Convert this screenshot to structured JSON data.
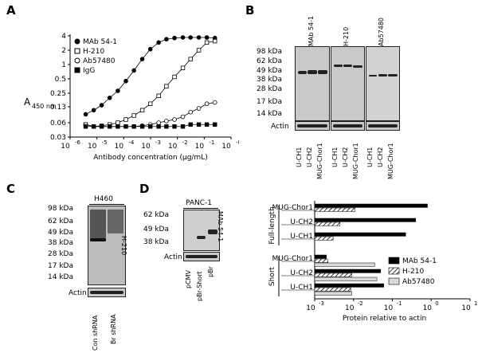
{
  "panels": {
    "a": {
      "letter": "A"
    },
    "b": {
      "letter": "B"
    },
    "c": {
      "letter": "C"
    },
    "d": {
      "letter": "D"
    }
  },
  "panel_b": {
    "columns": [
      "MAb 54-1",
      "H-210",
      "Ab57480"
    ],
    "markers": [
      "98 kDa",
      "62 kDa",
      "49 kDa",
      "38 kDa",
      "28 kDa",
      "17 kDa",
      "14 kDa"
    ],
    "actin": "Actin",
    "lanes": [
      "U-CH1",
      "U-CH2",
      "MUG-Chor1",
      "U-CH1",
      "U-CH2",
      "MUG-Chor1",
      "U-CH1",
      "U-CH2",
      "MUG-Chor1"
    ]
  },
  "panel_c": {
    "cell_line": "H460",
    "antibody": "H-210",
    "markers": [
      "98 kDa",
      "62 kDa",
      "49 kDa",
      "38 kDa",
      "28 kDa",
      "17 kDa",
      "14 kDa"
    ],
    "actin": "Actin",
    "lanes": [
      "Con shRNA",
      "Br shRNA"
    ]
  },
  "panel_d": {
    "cell_line": "PANC-1",
    "antibody": "MAb 54-1",
    "markers": [
      "62 kDa",
      "49 kDa",
      "38 kDa"
    ],
    "actin": "Actin",
    "lanes": [
      "pCMV",
      "pBr-Short",
      "pBr"
    ]
  },
  "chart_data": [
    {
      "type": "line",
      "xlabel": "Antibody concentration (μg/mL)",
      "ylabel": "A",
      "ylabel_sub": "450 nm",
      "x_scale": "log",
      "y_scale": "log",
      "xlim": [
        1e-06,
        1
      ],
      "ylim": [
        0.03,
        4
      ],
      "x_ticks": [
        "10",
        "10",
        "10",
        "10",
        "10",
        "10",
        "10"
      ],
      "x_tick_exp": [
        "-6",
        "-5",
        "-4",
        "-3",
        "-2",
        "-1",
        "-0"
      ],
      "y_ticks": [
        "4",
        "2",
        "1",
        "0.5",
        "0.25",
        "0.13",
        "0.06",
        "0.03"
      ],
      "y_tick_values": [
        4,
        2,
        1,
        0.5,
        0.25,
        0.13,
        0.06,
        0.03
      ],
      "legend_position": "top-left",
      "x": [
        3.8e-06,
        7.6e-06,
        1.5e-05,
        3e-05,
        6e-05,
        0.00012,
        0.00024,
        0.00049,
        0.00098,
        0.002,
        0.0039,
        0.0078,
        0.016,
        0.031,
        0.063,
        0.125,
        0.25
      ],
      "series": [
        {
          "name": "MAb 54-1",
          "marker": "filled-circle",
          "values": [
            0.09,
            0.11,
            0.14,
            0.2,
            0.28,
            0.45,
            0.75,
            1.3,
            2.1,
            2.9,
            3.4,
            3.6,
            3.7,
            3.7,
            3.7,
            3.7,
            3.6
          ]
        },
        {
          "name": "H-210",
          "marker": "open-square",
          "values": [
            0.055,
            0.05,
            0.052,
            0.055,
            0.06,
            0.07,
            0.085,
            0.11,
            0.15,
            0.22,
            0.35,
            0.55,
            0.85,
            1.3,
            2.0,
            2.9,
            3.1
          ]
        },
        {
          "name": "Ab57480",
          "marker": "open-circle",
          "values": [
            0.055,
            0.05,
            0.05,
            0.05,
            0.05,
            0.05,
            0.05,
            0.052,
            0.055,
            0.06,
            0.065,
            0.07,
            0.08,
            0.1,
            0.12,
            0.15,
            0.16
          ]
        },
        {
          "name": "IgG",
          "marker": "filled-square",
          "values": [
            0.05,
            0.05,
            0.05,
            0.05,
            0.05,
            0.05,
            0.05,
            0.05,
            0.05,
            0.05,
            0.05,
            0.05,
            0.05,
            0.055,
            0.055,
            0.055,
            0.055
          ]
        }
      ]
    },
    {
      "type": "bar",
      "orientation": "horizontal",
      "xlabel": "Protein relative to actin",
      "x_scale": "log",
      "xlim": [
        0.001,
        10
      ],
      "x_ticks": [
        "10",
        "10",
        "10",
        "10",
        "10"
      ],
      "x_tick_exp": [
        "-3",
        "-2",
        "-1",
        "0",
        "1"
      ],
      "groups": [
        {
          "name": "Full-length",
          "categories": [
            "MUG-Chor1",
            "U-CH2",
            "U-CH1"
          ]
        },
        {
          "name": "Short",
          "categories": [
            "MUG-Chor1",
            "U-CH2",
            "U-CH1"
          ]
        }
      ],
      "legend_position": "bottom-right",
      "series": [
        {
          "name": "MAb 54-1",
          "fill": "black",
          "values": [
            0.8,
            0.4,
            0.22,
            0.002,
            0.05,
            0.06
          ]
        },
        {
          "name": "H-210",
          "fill": "hatched",
          "values": [
            0.011,
            0.0045,
            0.003,
            0.0022,
            0.009,
            0.0085
          ]
        },
        {
          "name": "Ab57480",
          "fill": "light-gray",
          "values": [
            0.0,
            0.0,
            0.0,
            0.035,
            0.04,
            0.009
          ]
        }
      ]
    }
  ]
}
